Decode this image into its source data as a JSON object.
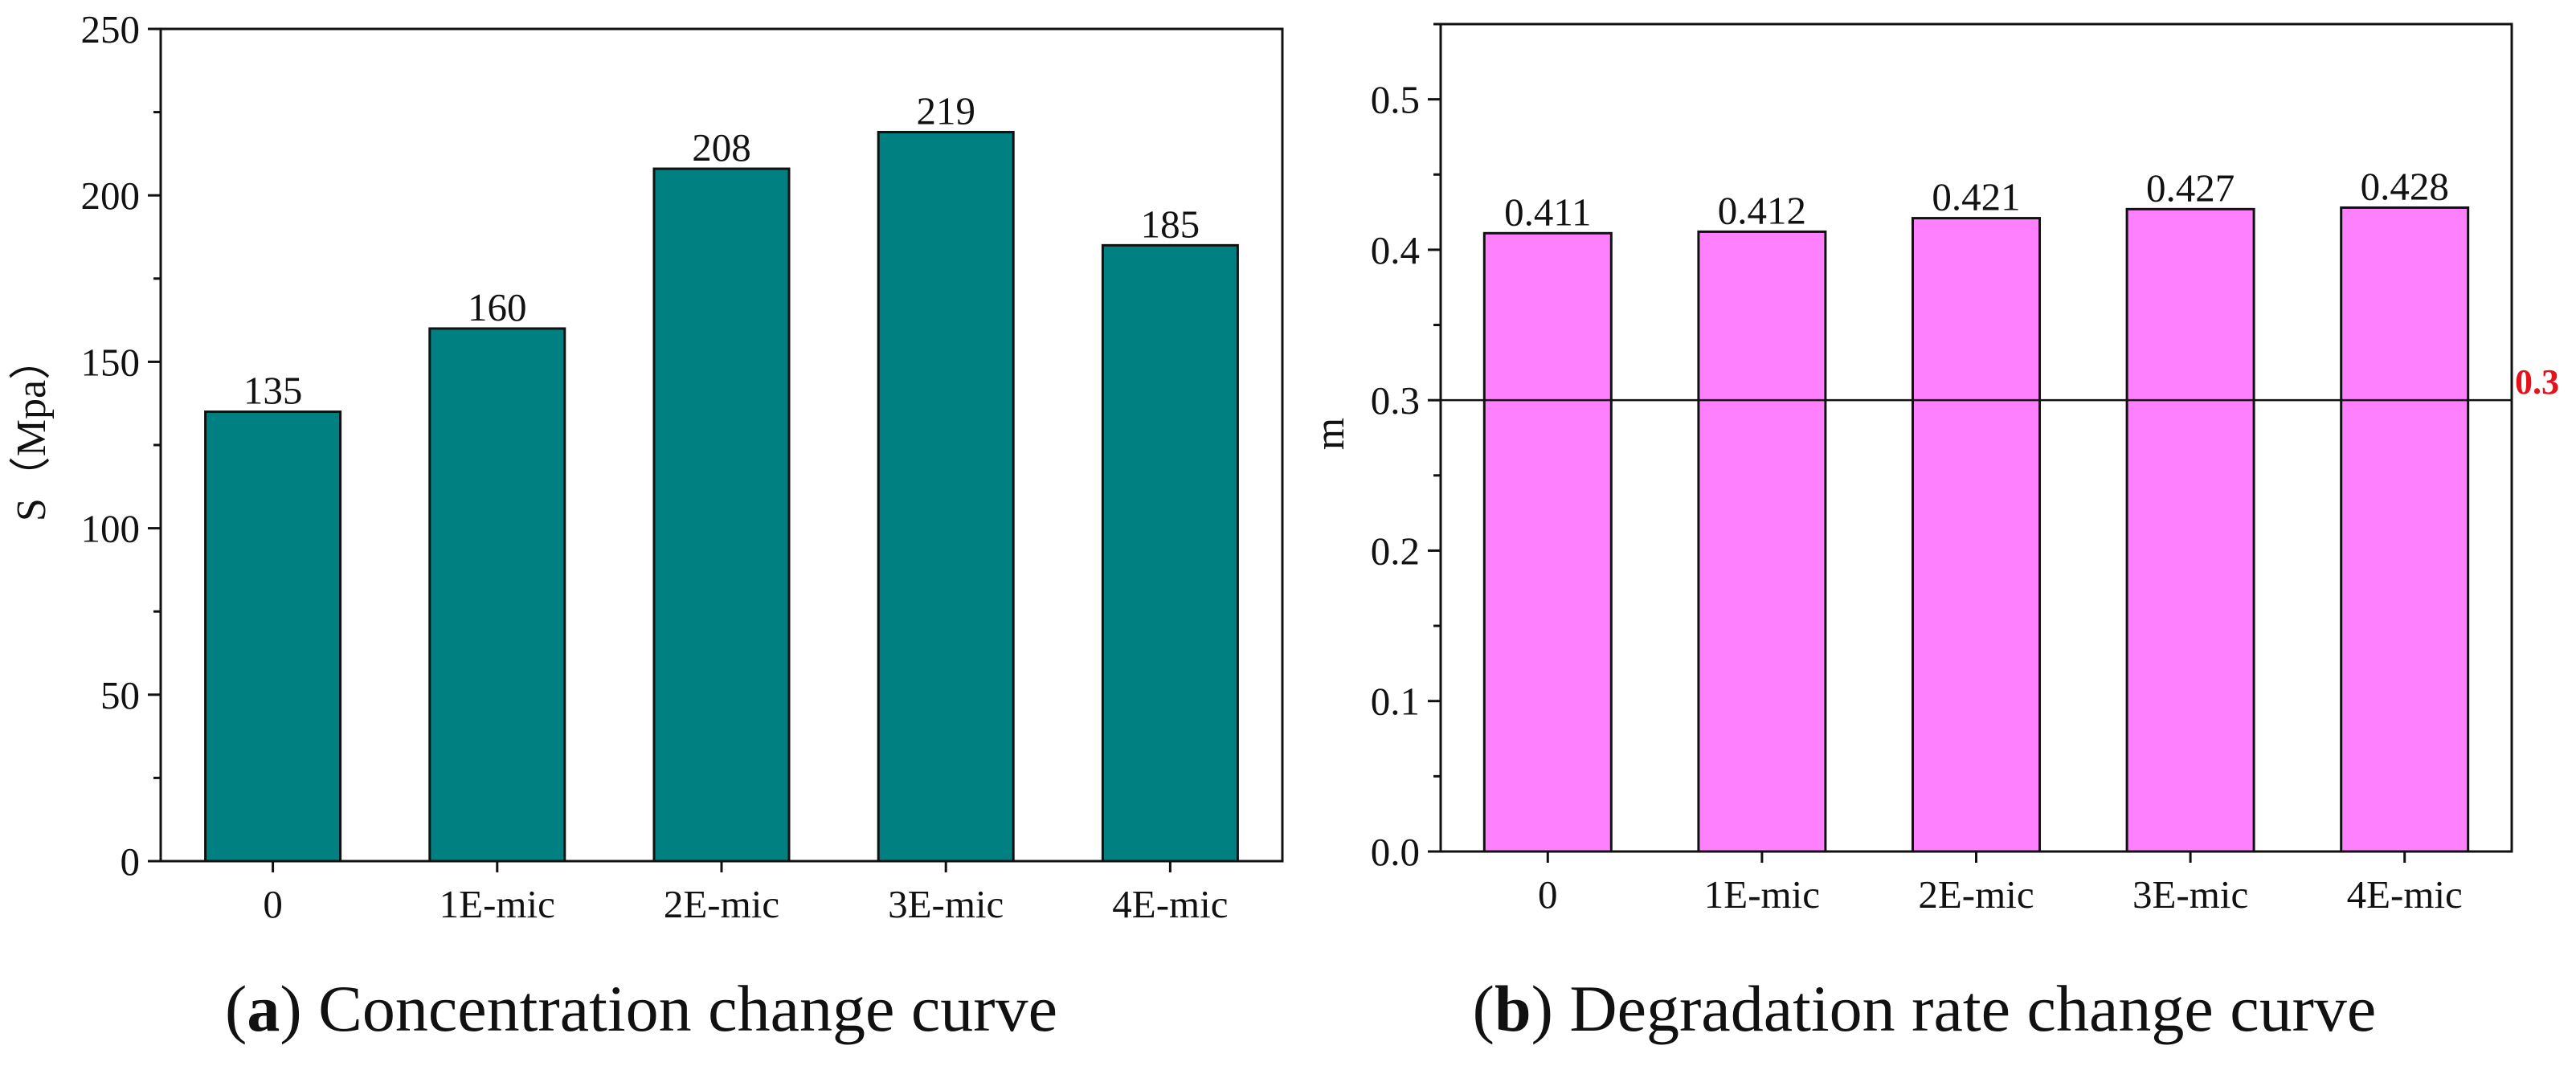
{
  "chart_data": [
    {
      "type": "bar",
      "categories": [
        "0",
        "1E-mic",
        "2E-mic",
        "3E-mic",
        "4E-mic"
      ],
      "values": [
        135,
        160,
        208,
        219,
        185
      ],
      "value_labels": [
        "135",
        "160",
        "208",
        "219",
        "185"
      ],
      "ylabel": "S（Mpa）",
      "xlabel": "",
      "ylim": [
        0,
        250
      ],
      "yticks": [
        "0",
        "50",
        "100",
        "150",
        "200",
        "250"
      ],
      "bar_color": "#008080",
      "caption_letter": "a",
      "caption_text": " Concentration change curve"
    },
    {
      "type": "bar",
      "categories": [
        "0",
        "1E-mic",
        "2E-mic",
        "3E-mic",
        "4E-mic"
      ],
      "values": [
        0.411,
        0.412,
        0.421,
        0.427,
        0.428
      ],
      "value_labels": [
        "0.411",
        "0.412",
        "0.421",
        "0.427",
        "0.428"
      ],
      "ylabel": "m",
      "xlabel": "",
      "ylim": [
        0,
        0.55
      ],
      "yticks": [
        "0.0",
        "0.1",
        "0.2",
        "0.3",
        "0.4",
        "0.5"
      ],
      "bar_color": "#ff80ff",
      "reference_line": {
        "value": 0.3,
        "label": "0.3",
        "color": "#e8101a"
      },
      "caption_letter": "b",
      "caption_text": " Degradation rate change curve"
    }
  ]
}
